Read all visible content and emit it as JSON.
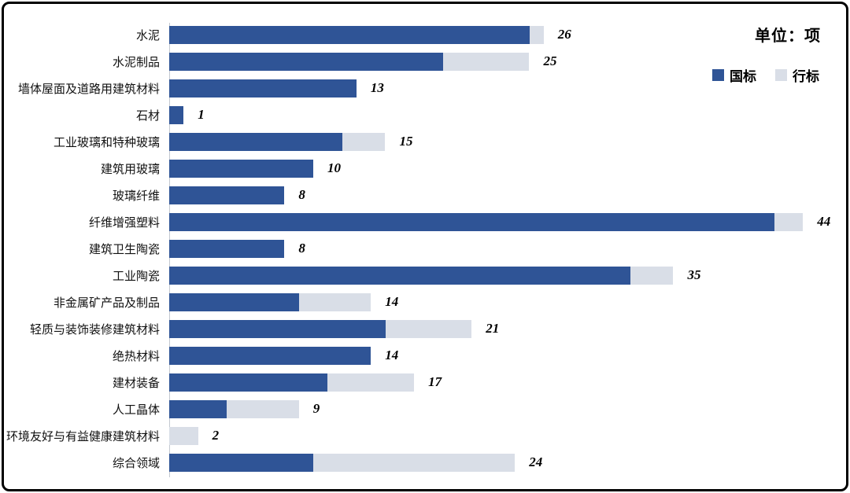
{
  "header": {
    "unit_label": "单位：项"
  },
  "legend": [
    {
      "label": "国标",
      "color": "#2F5496"
    },
    {
      "label": "行标",
      "color": "#D9DEE7"
    }
  ],
  "chart_data": {
    "type": "bar",
    "orientation": "horizontal",
    "stacked": true,
    "title": "",
    "unit": "项",
    "legend_position": "top-right",
    "grid": false,
    "xlim": [
      0,
      47
    ],
    "categories": [
      "水泥",
      "水泥制品",
      "墙体屋面及道路用建筑材料",
      "石材",
      "工业玻璃和特种玻璃",
      "建筑用玻璃",
      "玻璃纤维",
      "纤维增强塑料",
      "建筑卫生陶瓷",
      "工业陶瓷",
      "非金属矿产品及制品",
      "轻质与装饰装修建筑材料",
      "绝热材料",
      "建材装备",
      "人工晶体",
      "环境友好与有益健康建筑材料",
      "综合领域"
    ],
    "series": [
      {
        "name": "国标",
        "color": "#2F5496",
        "values": [
          25,
          19,
          13,
          1,
          12,
          10,
          8,
          42,
          8,
          32,
          9,
          15,
          14,
          11,
          4,
          0,
          10
        ]
      },
      {
        "name": "行标",
        "color": "#D9DEE7",
        "values": [
          1,
          6,
          0,
          0,
          3,
          0,
          0,
          2,
          0,
          3,
          5,
          6,
          0,
          6,
          5,
          2,
          14
        ]
      }
    ],
    "totals": [
      26,
      25,
      13,
      1,
      15,
      10,
      8,
      44,
      8,
      35,
      14,
      21,
      14,
      17,
      9,
      2,
      24
    ]
  }
}
